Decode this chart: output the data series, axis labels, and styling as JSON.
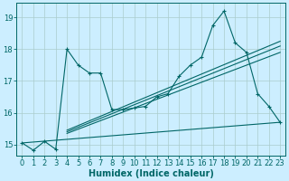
{
  "xlabel": "Humidex (Indice chaleur)",
  "bg_color": "#cceeff",
  "line_color": "#006666",
  "grid_color": "#aacccc",
  "xlim": [
    -0.5,
    23.5
  ],
  "ylim": [
    14.65,
    19.45
  ],
  "yticks": [
    15,
    16,
    17,
    18,
    19
  ],
  "xticks": [
    0,
    1,
    2,
    3,
    4,
    5,
    6,
    7,
    8,
    9,
    10,
    11,
    12,
    13,
    14,
    15,
    16,
    17,
    18,
    19,
    20,
    21,
    22,
    23
  ],
  "tick_fontsize": 6,
  "xlabel_fontsize": 7,
  "jagged_x": [
    0,
    1,
    2,
    3,
    4,
    5,
    6,
    7,
    8,
    9,
    10,
    11,
    12,
    13,
    14,
    15,
    16,
    17,
    18,
    19,
    20,
    21,
    22,
    23
  ],
  "jagged_y": [
    15.05,
    14.82,
    15.1,
    14.85,
    18.0,
    17.5,
    17.25,
    17.25,
    16.1,
    16.1,
    16.15,
    16.2,
    16.5,
    16.6,
    17.15,
    17.5,
    17.75,
    18.75,
    19.2,
    18.2,
    17.9,
    16.6,
    16.2,
    15.7
  ],
  "line1_x": [
    0,
    23
  ],
  "line1_y": [
    15.05,
    15.7
  ],
  "line2_x": [
    4,
    23
  ],
  "line2_y": [
    15.35,
    17.9
  ],
  "line3_x": [
    4,
    23
  ],
  "line3_y": [
    15.4,
    18.1
  ],
  "line4_x": [
    4,
    23
  ],
  "line4_y": [
    15.45,
    18.25
  ]
}
